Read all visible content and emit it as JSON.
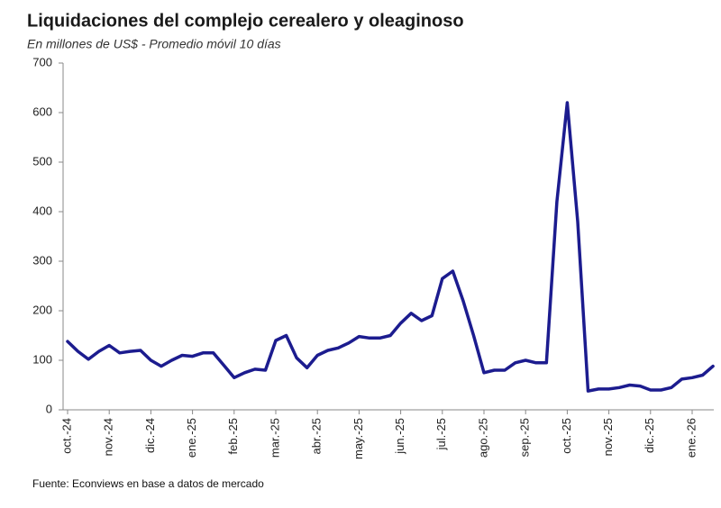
{
  "chart_data": {
    "type": "line",
    "title": "Liquidaciones del complejo cerealero y oleaginoso",
    "subtitle": "En millones de US$ - Promedio móvil 10 días",
    "source": "Fuente: Econviews en base a datos de mercado",
    "categories": [
      "oct.-24",
      null,
      null,
      null,
      "nov.-24",
      null,
      null,
      null,
      "dic.-24",
      null,
      null,
      null,
      "ene.-25",
      null,
      null,
      null,
      "feb.-25",
      null,
      null,
      null,
      "mar.-25",
      null,
      null,
      null,
      "abr.-25",
      null,
      null,
      null,
      "may.-25",
      null,
      null,
      null,
      "jun.-25",
      null,
      null,
      null,
      "jul.-25",
      null,
      null,
      null,
      "ago.-25",
      null,
      null,
      null,
      "sep.-25",
      null,
      null,
      null,
      "oct.-25",
      null,
      null,
      null,
      "nov.-25",
      null,
      null,
      null,
      "dic.-25",
      null,
      null,
      null,
      "ene.-26",
      null,
      null
    ],
    "values": [
      138,
      118,
      102,
      118,
      130,
      115,
      118,
      120,
      100,
      88,
      100,
      110,
      108,
      115,
      115,
      90,
      65,
      75,
      82,
      80,
      140,
      150,
      105,
      85,
      110,
      120,
      125,
      135,
      148,
      145,
      145,
      150,
      175,
      195,
      180,
      190,
      265,
      280,
      220,
      150,
      75,
      80,
      80,
      95,
      100,
      95,
      95,
      420,
      620,
      380,
      38,
      42,
      42,
      45,
      50,
      48,
      40,
      40,
      45,
      62,
      65,
      70,
      88
    ],
    "color": "#1c1c8f",
    "ylim": [
      0,
      700
    ],
    "yticks": [
      0,
      100,
      200,
      300,
      400,
      500,
      600,
      700
    ],
    "grid": false
  }
}
